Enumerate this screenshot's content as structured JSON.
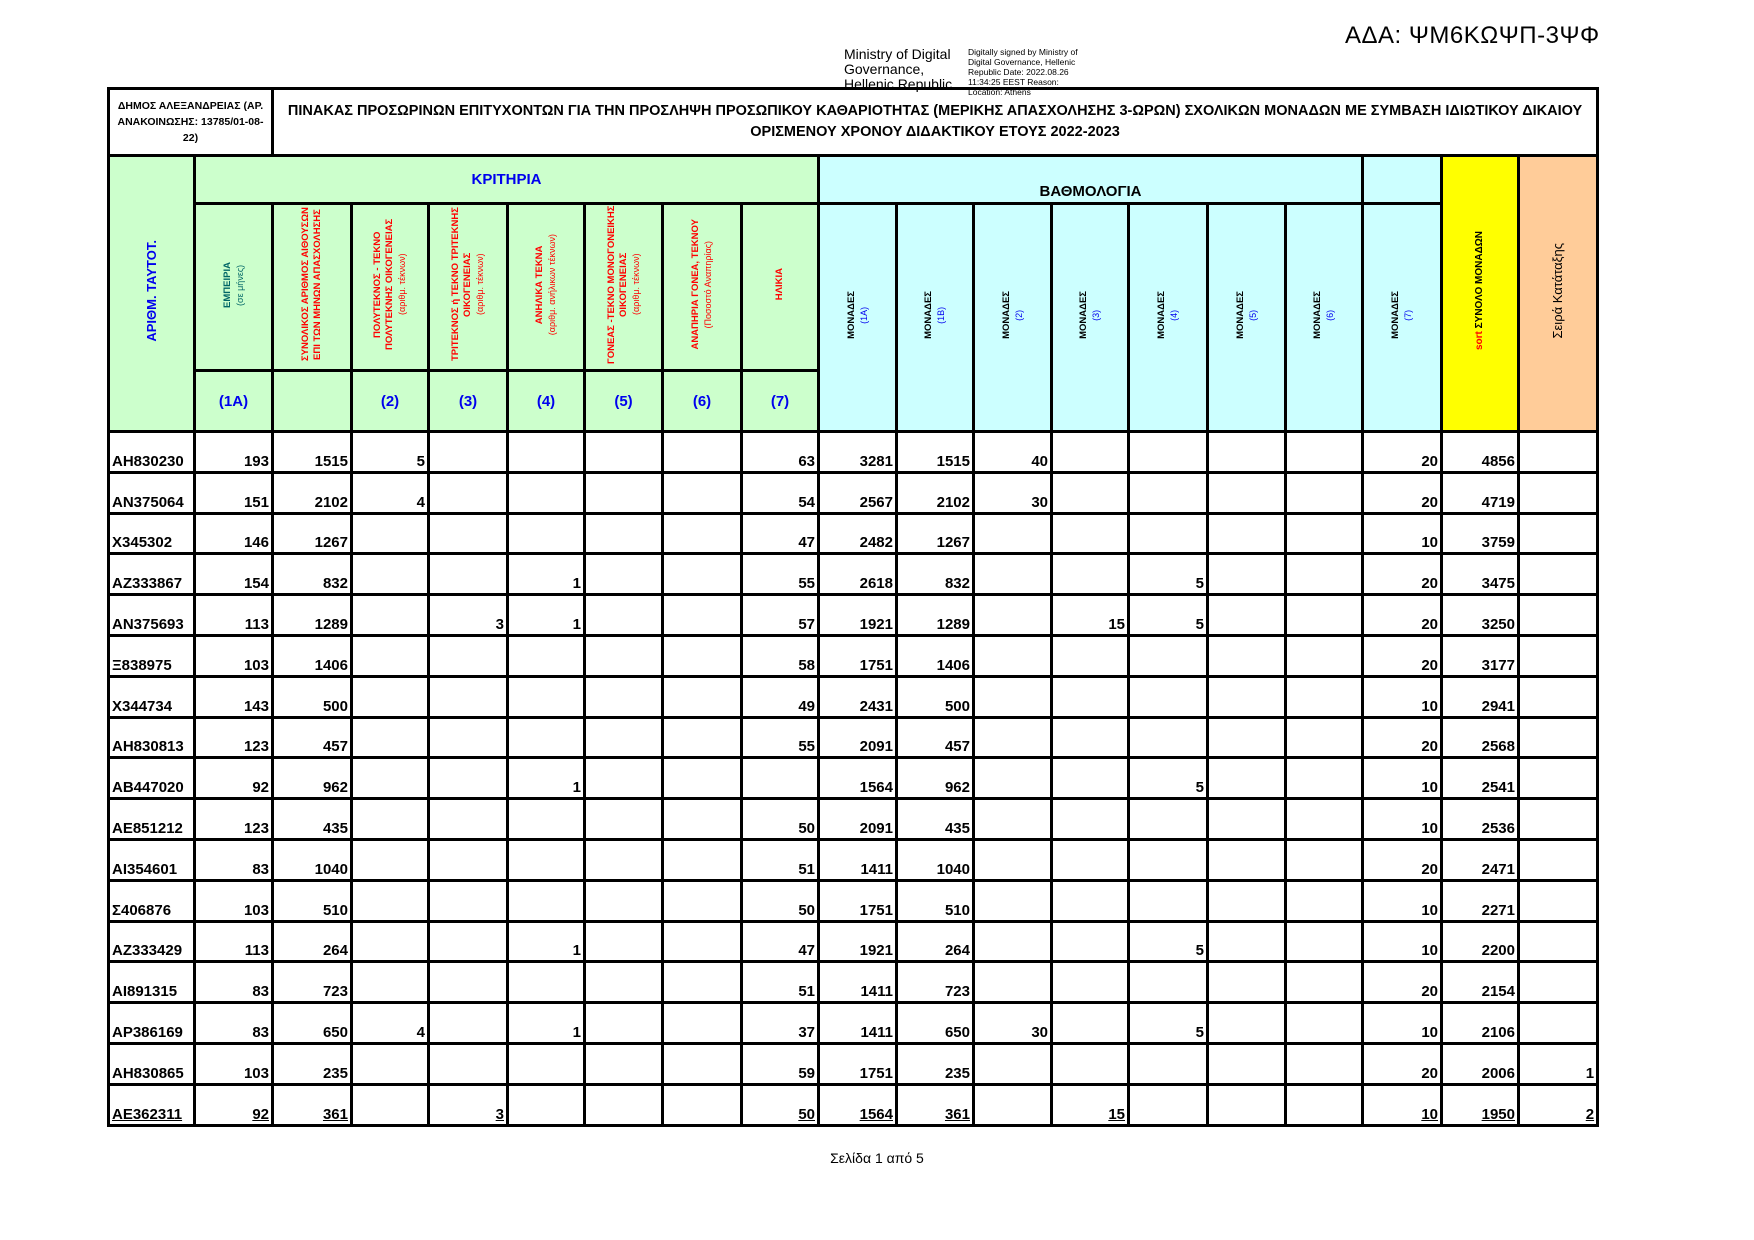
{
  "ada": "ΑΔΑ: ΨΜ6ΚΩΨΠ-3ΨΦ",
  "signature": {
    "signer": "Ministry of Digital Governance, Hellenic Republic",
    "details": "Digitally signed by Ministry of Digital Governance, Hellenic Republic Date: 2022.08.26 11:34:25 EEST Reason: Location: Athens"
  },
  "header": {
    "municipality": "ΔΗΜΟΣ ΑΛΕΞΑΝΔΡΕΙΑΣ (ΑΡ. ΑΝΑΚΟΙΝΩΣΗΣ: 13785/01-08-22)",
    "title": "ΠΙΝΑΚΑΣ  ΠΡΟΣΩΡΙΝΩΝ ΕΠΙΤΥΧΟΝΤΩΝ ΓΙΑ ΤΗΝ ΠΡΟΣΛΗΨΗ ΠΡΟΣΩΠΙΚΟΥ ΚΑΘΑΡΙΟΤΗΤΑΣ (ΜΕΡΙΚΗΣ ΑΠΑΣΧΟΛΗΣΗΣ 3-ΩΡΩΝ)  ΣΧΟΛΙΚΩΝ ΜΟΝΑΔΩΝ ΜΕ ΣΥΜΒΑΣΗ ΙΔΙΩΤΙΚΟΥ ΔΙΚΑΙΟΥ ΟΡΙΣΜΕΝΟΥ ΧΡΟΝΟΥ ΔΙΔΑΚΤΙΚΟΥ ΕΤΟΥΣ 2022-2023"
  },
  "columns": {
    "id": "ΑΡΙΘΜ. ΤΑΥΤΟΤ.",
    "criteria_group": "ΚΡΙΤΗΡΙΑ",
    "scoring_group": "ΒΑΘΜΟΛΟΓΙΑ",
    "criteria": [
      {
        "label": "ΕΜΠΕΙΡΙΑ",
        "sub": "(σε μήνες)",
        "code": "(1Α)"
      },
      {
        "label": "ΣΥΝΟΛΙΚΟΣ ΑΡΙΘΜΟΣ ΑΙΘΟΥΣΩΝ ΕΠΙ ΤΩΝ ΜΗΝΩΝ ΑΠΑΣΧΟΛΗΣΗΣ",
        "sub": "",
        "code": ""
      },
      {
        "label": "ΠΟΛΥΤΕΚΝΟΣ - ΤΕΚΝΟ ΠΟΛΥΤΕΚΝΗΣ ΟΙΚΟΓΕΝΕΙΑΣ",
        "sub": "(αριθμ. τέκνων)",
        "code": "(2)"
      },
      {
        "label": "ΤΡΙΤΕΚΝΟΣ ή ΤΕΚΝΟ ΤΡΙΤΕΚΝΗΣ ΟΙΚΟΓΕΝΕΙΑΣ",
        "sub": "(αριθμ. τέκνων)",
        "code": "(3)"
      },
      {
        "label": "ΑΝΗΛΙΚΑ ΤΕΚΝΑ",
        "sub": "(αριθμ. ανήλικων τέκνων)",
        "code": "(4)"
      },
      {
        "label": "ΓΟΝΕΑΣ -ΤΕΚΝΟ ΜΟΝΟΓΟΝΕΙΚΗΣ ΟΙΚΟΓΕΝΕΙΑΣ",
        "sub": "(αριθμ. τέκνων)",
        "code": "(5)"
      },
      {
        "label": "ΑΝΑΠΗΡΙΑ ΓΟΝΕΑ, ΤΕΚΝΟΥ",
        "sub": "(Ποσοστό Αναπηρίας)",
        "code": "(6)"
      },
      {
        "label": "ΗΛΙΚΙΑ",
        "sub": "",
        "code": "(7)"
      }
    ],
    "scores": [
      {
        "label": "ΜΟΝΑΔΕΣ",
        "code": "(1Α)"
      },
      {
        "label": "ΜΟΝΑΔΕΣ",
        "code": "(1Β)"
      },
      {
        "label": "ΜΟΝΑΔΕΣ",
        "code": "(2)"
      },
      {
        "label": "ΜΟΝΑΔΕΣ",
        "code": "(3)"
      },
      {
        "label": "ΜΟΝΑΔΕΣ",
        "code": "(4)"
      },
      {
        "label": "ΜΟΝΑΔΕΣ",
        "code": "(5)"
      },
      {
        "label": "ΜΟΝΑΔΕΣ",
        "code": "(6)"
      },
      {
        "label": "ΜΟΝΑΔΕΣ",
        "code": "(7)"
      }
    ],
    "total_prefix": "sort",
    "total": "ΣΥΝΟΛΟ ΜΟΝΑΔΩΝ",
    "rank": "Σειρά Κατάταξης"
  },
  "colors": {
    "criteria_bg": "#ccffcc",
    "scores_bg": "#ccffff",
    "total_bg": "#ffff00",
    "rank_bg": "#ffcc99"
  },
  "rows": [
    [
      "ΑΗ830230",
      "193",
      "1515",
      "5",
      "",
      "",
      "",
      "",
      "63",
      "3281",
      "1515",
      "40",
      "",
      "",
      "",
      "",
      "20",
      "4856",
      ""
    ],
    [
      "ΑΝ375064",
      "151",
      "2102",
      "4",
      "",
      "",
      "",
      "",
      "54",
      "2567",
      "2102",
      "30",
      "",
      "",
      "",
      "",
      "20",
      "4719",
      ""
    ],
    [
      "Χ345302",
      "146",
      "1267",
      "",
      "",
      "",
      "",
      "",
      "47",
      "2482",
      "1267",
      "",
      "",
      "",
      "",
      "",
      "10",
      "3759",
      ""
    ],
    [
      "ΑΖ333867",
      "154",
      "832",
      "",
      "",
      "1",
      "",
      "",
      "55",
      "2618",
      "832",
      "",
      "",
      "5",
      "",
      "",
      "20",
      "3475",
      ""
    ],
    [
      "ΑΝ375693",
      "113",
      "1289",
      "",
      "3",
      "1",
      "",
      "",
      "57",
      "1921",
      "1289",
      "",
      "15",
      "5",
      "",
      "",
      "20",
      "3250",
      ""
    ],
    [
      "Ξ838975",
      "103",
      "1406",
      "",
      "",
      "",
      "",
      "",
      "58",
      "1751",
      "1406",
      "",
      "",
      "",
      "",
      "",
      "20",
      "3177",
      ""
    ],
    [
      "Χ344734",
      "143",
      "500",
      "",
      "",
      "",
      "",
      "",
      "49",
      "2431",
      "500",
      "",
      "",
      "",
      "",
      "",
      "10",
      "2941",
      ""
    ],
    [
      "ΑΗ830813",
      "123",
      "457",
      "",
      "",
      "",
      "",
      "",
      "55",
      "2091",
      "457",
      "",
      "",
      "",
      "",
      "",
      "20",
      "2568",
      ""
    ],
    [
      "ΑΒ447020",
      "92",
      "962",
      "",
      "",
      "1",
      "",
      "",
      "",
      "1564",
      "962",
      "",
      "",
      "5",
      "",
      "",
      "10",
      "2541",
      ""
    ],
    [
      "ΑΕ851212",
      "123",
      "435",
      "",
      "",
      "",
      "",
      "",
      "50",
      "2091",
      "435",
      "",
      "",
      "",
      "",
      "",
      "10",
      "2536",
      ""
    ],
    [
      "ΑΙ354601",
      "83",
      "1040",
      "",
      "",
      "",
      "",
      "",
      "51",
      "1411",
      "1040",
      "",
      "",
      "",
      "",
      "",
      "20",
      "2471",
      ""
    ],
    [
      "Σ406876",
      "103",
      "510",
      "",
      "",
      "",
      "",
      "",
      "50",
      "1751",
      "510",
      "",
      "",
      "",
      "",
      "",
      "10",
      "2271",
      ""
    ],
    [
      "ΑΖ333429",
      "113",
      "264",
      "",
      "",
      "1",
      "",
      "",
      "47",
      "1921",
      "264",
      "",
      "",
      "5",
      "",
      "",
      "10",
      "2200",
      ""
    ],
    [
      "ΑΙ891315",
      "83",
      "723",
      "",
      "",
      "",
      "",
      "",
      "51",
      "1411",
      "723",
      "",
      "",
      "",
      "",
      "",
      "20",
      "2154",
      ""
    ],
    [
      "ΑΡ386169",
      "83",
      "650",
      "4",
      "",
      "1",
      "",
      "",
      "37",
      "1411",
      "650",
      "30",
      "",
      "5",
      "",
      "",
      "10",
      "2106",
      ""
    ],
    [
      "ΑΗ830865",
      "103",
      "235",
      "",
      "",
      "",
      "",
      "",
      "59",
      "1751",
      "235",
      "",
      "",
      "",
      "",
      "",
      "20",
      "2006",
      "1"
    ],
    [
      "ΑΕ362311",
      "92",
      "361",
      "",
      "3",
      "",
      "",
      "",
      "50",
      "1564",
      "361",
      "",
      "15",
      "",
      "",
      "",
      "10",
      "1950",
      "2"
    ]
  ],
  "footer": "Σελίδα 1 από 5"
}
